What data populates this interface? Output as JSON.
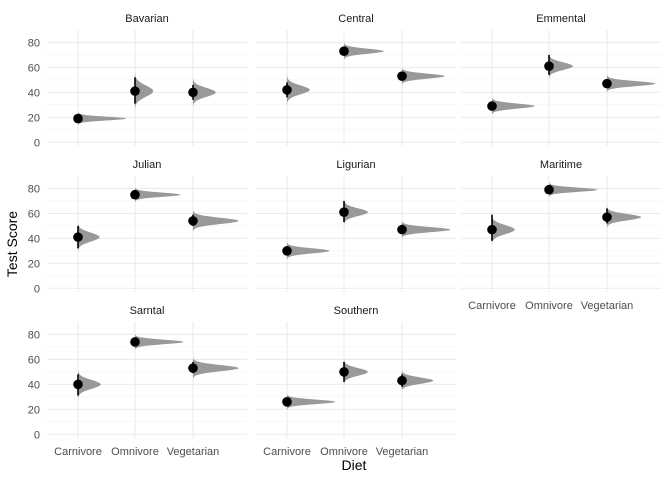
{
  "chart_data": {
    "type": "halfeye",
    "xlabel": "Diet",
    "ylabel": "Test Score",
    "categories": [
      "Carnivore",
      "Omnivore",
      "Vegetarian"
    ],
    "ylim": [
      -3,
      90
    ],
    "yticks": [
      0,
      20,
      40,
      60,
      80
    ],
    "grid": true,
    "legend": "none",
    "colors": {
      "point": "#000000",
      "density": "#999999",
      "interval": "#000000",
      "grid": "#ebebeb"
    },
    "facets": [
      {
        "name": "Bavarian",
        "points": [
          {
            "diet": "Carnivore",
            "y": 19,
            "lo": 17,
            "hi": 21,
            "spread": 1.5,
            "width": 0.85
          },
          {
            "diet": "Omnivore",
            "y": 41,
            "lo": 31,
            "hi": 52,
            "spread": 4.5,
            "width": 0.32
          },
          {
            "diet": "Vegetarian",
            "y": 40,
            "lo": 34,
            "hi": 46,
            "spread": 3.5,
            "width": 0.4
          }
        ]
      },
      {
        "name": "Central",
        "points": [
          {
            "diet": "Carnivore",
            "y": 42,
            "lo": 36,
            "hi": 48,
            "spread": 3.5,
            "width": 0.4
          },
          {
            "diet": "Omnivore",
            "y": 73,
            "lo": 70,
            "hi": 76,
            "spread": 2.0,
            "width": 0.7
          },
          {
            "diet": "Vegetarian",
            "y": 53,
            "lo": 50,
            "hi": 56,
            "spread": 2.0,
            "width": 0.75
          }
        ]
      },
      {
        "name": "Emmental",
        "points": [
          {
            "diet": "Carnivore",
            "y": 29,
            "lo": 26,
            "hi": 32,
            "spread": 2.0,
            "width": 0.75
          },
          {
            "diet": "Omnivore",
            "y": 61,
            "lo": 54,
            "hi": 70,
            "spread": 3.0,
            "width": 0.42
          },
          {
            "diet": "Vegetarian",
            "y": 47,
            "lo": 44,
            "hi": 50,
            "spread": 2.0,
            "width": 0.85
          }
        ]
      },
      {
        "name": "Julian",
        "points": [
          {
            "diet": "Carnivore",
            "y": 41,
            "lo": 32,
            "hi": 50,
            "spread": 3.5,
            "width": 0.38
          },
          {
            "diet": "Omnivore",
            "y": 75,
            "lo": 73,
            "hi": 78,
            "spread": 1.7,
            "width": 0.8
          },
          {
            "diet": "Vegetarian",
            "y": 54,
            "lo": 50,
            "hi": 59,
            "spread": 2.5,
            "width": 0.8
          }
        ]
      },
      {
        "name": "Ligurian",
        "points": [
          {
            "diet": "Carnivore",
            "y": 30,
            "lo": 27,
            "hi": 33,
            "spread": 2.0,
            "width": 0.75
          },
          {
            "diet": "Omnivore",
            "y": 61,
            "lo": 53,
            "hi": 70,
            "spread": 3.0,
            "width": 0.42
          },
          {
            "diet": "Vegetarian",
            "y": 47,
            "lo": 44,
            "hi": 51,
            "spread": 2.0,
            "width": 0.85
          }
        ]
      },
      {
        "name": "Maritime",
        "points": [
          {
            "diet": "Carnivore",
            "y": 47,
            "lo": 38,
            "hi": 59,
            "spread": 3.5,
            "width": 0.4
          },
          {
            "diet": "Omnivore",
            "y": 79,
            "lo": 76,
            "hi": 82,
            "spread": 1.7,
            "width": 0.85
          },
          {
            "diet": "Vegetarian",
            "y": 57,
            "lo": 52,
            "hi": 64,
            "spread": 2.5,
            "width": 0.6
          }
        ]
      },
      {
        "name": "Sarntal",
        "points": [
          {
            "diet": "Carnivore",
            "y": 40,
            "lo": 31,
            "hi": 48,
            "spread": 3.5,
            "width": 0.4
          },
          {
            "diet": "Omnivore",
            "y": 74,
            "lo": 71,
            "hi": 77,
            "spread": 1.8,
            "width": 0.85
          },
          {
            "diet": "Vegetarian",
            "y": 53,
            "lo": 49,
            "hi": 58,
            "spread": 2.5,
            "width": 0.8
          }
        ]
      },
      {
        "name": "Southern",
        "points": [
          {
            "diet": "Carnivore",
            "y": 26,
            "lo": 23,
            "hi": 28,
            "spread": 1.8,
            "width": 0.85
          },
          {
            "diet": "Omnivore",
            "y": 50,
            "lo": 42,
            "hi": 58,
            "spread": 3.0,
            "width": 0.42
          },
          {
            "diet": "Vegetarian",
            "y": 43,
            "lo": 38,
            "hi": 48,
            "spread": 2.5,
            "width": 0.55
          }
        ]
      }
    ]
  }
}
